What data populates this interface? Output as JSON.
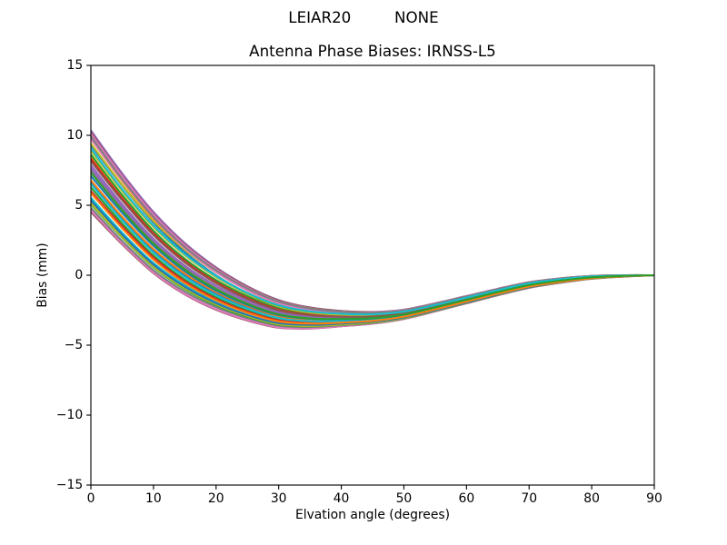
{
  "figure": {
    "suptitle": "LEIAR20         NONE",
    "title": "Antenna Phase Biases: IRNSS-L5",
    "xlabel": "Elvation angle (degrees)",
    "ylabel": "Bias (mm)",
    "background": "#ffffff",
    "text_color": "#000000",
    "axis_color": "#000000"
  },
  "chart_data": {
    "type": "line",
    "suptitle": "LEIAR20         NONE",
    "title": "Antenna Phase Biases: IRNSS-L5",
    "xlabel": "Elvation angle (degrees)",
    "ylabel": "Bias (mm)",
    "xlim": [
      0,
      90
    ],
    "ylim": [
      -15,
      15
    ],
    "xtick_values": [
      0,
      10,
      20,
      30,
      40,
      50,
      60,
      70,
      80,
      90
    ],
    "xtick_labels": [
      "0",
      "10",
      "20",
      "30",
      "40",
      "50",
      "60",
      "70",
      "80",
      "90"
    ],
    "ytick_values": [
      15,
      10,
      5,
      0,
      -5,
      -10,
      -15
    ],
    "ytick_labels": [
      "15",
      "10",
      "5",
      "0",
      "−5",
      "−10",
      "−15"
    ],
    "grid": false,
    "legend": "none",
    "line_width": 2.08,
    "palette": [
      "#1f77b4",
      "#ff7f0e",
      "#2ca02c",
      "#d62728",
      "#9467bd",
      "#8c564b",
      "#e377c2",
      "#7f7f7f",
      "#bcbd22",
      "#17becf"
    ],
    "x": [
      0,
      5,
      10,
      15,
      20,
      25,
      30,
      35,
      40,
      45,
      50,
      55,
      60,
      65,
      70,
      75,
      80,
      85,
      90
    ],
    "series": [
      {
        "color": "#1f77b4",
        "values": [
          6.716,
          4.105,
          1.789,
          0.024,
          -1.298,
          -2.279,
          -2.976,
          -3.225,
          -3.231,
          -3.153,
          -2.883,
          -2.373,
          -1.815,
          -1.257,
          -0.748,
          -0.416,
          -0.172,
          -0.061,
          0.0
        ]
      },
      {
        "color": "#ff7f0e",
        "values": [
          8.487,
          5.622,
          3.082,
          1.106,
          -0.401,
          -1.547,
          -2.375,
          -2.759,
          -2.887,
          -2.889,
          -2.674,
          -2.193,
          -1.655,
          -1.116,
          -0.626,
          -0.321,
          -0.112,
          -0.031,
          0.0
        ]
      },
      {
        "color": "#2ca02c",
        "values": [
          8.632,
          5.741,
          3.178,
          1.181,
          -0.343,
          -1.5,
          -2.333,
          -2.722,
          -2.854,
          -2.859,
          -2.649,
          -2.17,
          -1.635,
          -1.101,
          -0.615,
          -0.315,
          -0.109,
          -0.03,
          0.0
        ]
      },
      {
        "color": "#d62728",
        "values": [
          8.317,
          5.493,
          2.977,
          1.013,
          -0.489,
          -1.629,
          -2.449,
          -2.819,
          -2.93,
          -2.92,
          -2.697,
          -2.21,
          -1.669,
          -1.128,
          -0.637,
          -0.33,
          -0.118,
          -0.035,
          0.0
        ]
      },
      {
        "color": "#9467bd",
        "values": [
          10.356,
          7.283,
          4.522,
          2.302,
          0.563,
          -0.789,
          -1.774,
          -2.301,
          -2.548,
          -2.625,
          -2.46,
          -2.003,
          -1.484,
          -0.965,
          -0.497,
          -0.221,
          -0.049,
          -0.001,
          0.0
        ]
      },
      {
        "color": "#8c564b",
        "values": [
          10.2,
          7.115,
          4.378,
          2.2,
          0.499,
          -0.828,
          -1.799,
          -2.318,
          -2.562,
          -2.638,
          -2.475,
          -2.021,
          -1.502,
          -0.98,
          -0.506,
          -0.226,
          -0.051,
          -0.002,
          0.0
        ]
      },
      {
        "color": "#e377c2",
        "values": [
          10.099,
          7.061,
          4.332,
          2.141,
          0.429,
          -0.896,
          -1.857,
          -2.362,
          -2.592,
          -2.659,
          -2.489,
          -2.03,
          -1.509,
          -0.986,
          -0.514,
          -0.234,
          -0.057,
          -0.005,
          0.0
        ]
      },
      {
        "color": "#7f7f7f",
        "values": [
          7.489,
          4.795,
          2.38,
          0.502,
          -0.924,
          -1.989,
          -2.742,
          -3.038,
          -3.085,
          -3.035,
          -2.787,
          -2.291,
          -1.744,
          -1.197,
          -0.698,
          -0.378,
          -0.148,
          -0.048,
          0.0
        ]
      },
      {
        "color": "#bcbd22",
        "values": [
          8.913,
          6.01,
          3.437,
          1.422,
          -0.136,
          -1.344,
          -2.23,
          -2.665,
          -2.826,
          -2.84,
          -2.629,
          -2.146,
          -1.607,
          -1.072,
          -0.591,
          -0.297,
          -0.098,
          -0.025,
          0.0
        ]
      },
      {
        "color": "#17becf",
        "values": [
          5.546,
          3.049,
          0.884,
          -0.703,
          -1.859,
          -2.706,
          -3.313,
          -3.487,
          -3.433,
          -3.316,
          -3.017,
          -2.49,
          -1.917,
          -1.342,
          -0.819,
          -0.471,
          -0.208,
          -0.079,
          0.0
        ]
      },
      {
        "color": "#1f77b4",
        "values": [
          9.305,
          6.413,
          3.773,
          1.642,
          -0.015,
          -1.271,
          -2.158,
          -2.581,
          -2.742,
          -2.769,
          -2.577,
          -2.11,
          -1.584,
          -1.055,
          -0.574,
          -0.281,
          -0.087,
          -0.019,
          0.0
        ]
      },
      {
        "color": "#ff7f0e",
        "values": [
          6.792,
          4.183,
          1.877,
          0.119,
          -1.209,
          -2.206,
          -2.921,
          -3.189,
          -3.208,
          -3.136,
          -2.869,
          -2.358,
          -1.8,
          -1.242,
          -0.735,
          -0.408,
          -0.168,
          -0.059,
          0.0
        ]
      },
      {
        "color": "#2ca02c",
        "values": [
          6.281,
          3.696,
          1.407,
          -0.315,
          -1.582,
          -2.504,
          -3.15,
          -3.351,
          -3.32,
          -3.22,
          -2.937,
          -2.421,
          -1.858,
          -1.295,
          -0.781,
          -0.442,
          -0.189,
          -0.069,
          0.0
        ]
      },
      {
        "color": "#d62728",
        "values": [
          6.021,
          3.509,
          1.269,
          -0.43,
          -1.689,
          -2.598,
          -3.224,
          -3.399,
          -3.346,
          -3.236,
          -2.95,
          -2.437,
          -1.878,
          -1.316,
          -0.801,
          -0.457,
          -0.198,
          -0.073,
          0.0
        ]
      },
      {
        "color": "#9467bd",
        "values": [
          7.662,
          4.921,
          2.512,
          0.654,
          -0.773,
          -1.867,
          -2.656,
          -2.985,
          -3.05,
          -3.005,
          -2.76,
          -2.265,
          -1.721,
          -1.178,
          -0.683,
          -0.365,
          -0.139,
          -0.044,
          0.0
        ]
      },
      {
        "color": "#8c564b",
        "values": [
          4.522,
          2.21,
          0.152,
          -1.369,
          -2.47,
          -3.238,
          -3.751,
          -3.809,
          -3.648,
          -3.465,
          -3.129,
          -2.588,
          -2.011,
          -1.433,
          -0.904,
          -0.541,
          -0.252,
          -0.1,
          0.0
        ]
      },
      {
        "color": "#e377c2",
        "values": [
          4.627,
          2.279,
          0.199,
          -1.329,
          -2.429,
          -3.201,
          -3.725,
          -3.795,
          -3.642,
          -3.461,
          -3.124,
          -2.58,
          -2.0,
          -1.422,
          -0.895,
          -0.534,
          -0.248,
          -0.098,
          0.0
        ]
      },
      {
        "color": "#7f7f7f",
        "values": [
          4.82,
          2.442,
          0.352,
          -1.179,
          -2.283,
          -3.066,
          -3.607,
          -3.704,
          -3.58,
          -3.42,
          -3.097,
          -2.56,
          -1.984,
          -1.408,
          -0.88,
          -0.52,
          -0.238,
          -0.093,
          0.0
        ]
      },
      {
        "color": "#bcbd22",
        "values": [
          9.424,
          6.474,
          3.878,
          1.825,
          0.205,
          -1.081,
          -2.035,
          -2.526,
          -2.724,
          -2.758,
          -2.558,
          -2.082,
          -1.551,
          -1.026,
          -0.553,
          -0.267,
          -0.078,
          -0.015,
          0.0
        ]
      },
      {
        "color": "#17becf",
        "values": [
          6.525,
          3.925,
          1.616,
          -0.138,
          -1.442,
          -2.397,
          -3.066,
          -3.285,
          -3.267,
          -3.174,
          -2.898,
          -2.386,
          -1.829,
          -1.273,
          -0.766,
          -0.433,
          -0.184,
          -0.066,
          0.0
        ]
      },
      {
        "color": "#1f77b4",
        "values": [
          7.086,
          4.451,
          2.1,
          0.279,
          -1.103,
          -2.129,
          -2.85,
          -3.118,
          -3.146,
          -3.087,
          -2.833,
          -2.331,
          -1.777,
          -1.223,
          -0.719,
          -0.395,
          -0.161,
          -0.055,
          0.0
        ]
      },
      {
        "color": "#ff7f0e",
        "values": [
          9.741,
          6.741,
          4.059,
          1.925,
          0.264,
          -1.023,
          -1.961,
          -2.447,
          -2.66,
          -2.714,
          -2.533,
          -2.067,
          -1.539,
          -1.012,
          -0.536,
          -0.251,
          -0.069,
          -0.011,
          0.0
        ]
      },
      {
        "color": "#2ca02c",
        "values": [
          5.08,
          2.689,
          0.571,
          -1.001,
          -2.148,
          -2.97,
          -3.537,
          -3.654,
          -3.542,
          -3.388,
          -3.068,
          -2.533,
          -1.96,
          -1.386,
          -0.862,
          -0.507,
          -0.231,
          -0.089,
          0.0
        ]
      },
      {
        "color": "#d62728",
        "values": [
          5.269,
          2.856,
          0.718,
          -0.879,
          -2.05,
          -2.888,
          -3.463,
          -3.589,
          -3.491,
          -3.35,
          -3.04,
          -2.51,
          -1.939,
          -1.368,
          -0.847,
          -0.497,
          -0.225,
          -0.086,
          0.0
        ]
      },
      {
        "color": "#9467bd",
        "values": [
          7.88,
          5.089,
          2.611,
          0.699,
          -0.745,
          -1.826,
          -2.598,
          -2.924,
          -3.003,
          -2.975,
          -2.742,
          -2.252,
          -1.71,
          -1.166,
          -0.671,
          -0.357,
          -0.135,
          -0.042,
          0.0
        ]
      },
      {
        "color": "#8c564b",
        "values": [
          8.155,
          5.359,
          2.861,
          0.913,
          -0.573,
          -1.697,
          -2.505,
          -2.863,
          -2.964,
          -2.946,
          -2.718,
          -2.227,
          -1.683,
          -1.139,
          -0.647,
          -0.339,
          -0.125,
          -0.038,
          0.0
        ]
      },
      {
        "color": "#e377c2",
        "values": [
          9.754,
          6.806,
          4.116,
          1.932,
          0.226,
          -1.074,
          -1.996,
          -2.458,
          -2.654,
          -2.706,
          -2.53,
          -2.07,
          -1.546,
          -1.017,
          -0.537,
          -0.25,
          -0.068,
          -0.011,
          0.0
        ]
      },
      {
        "color": "#7f7f7f",
        "values": [
          9.926,
          6.879,
          4.167,
          2.016,
          0.348,
          -0.942,
          -1.885,
          -2.384,
          -2.612,
          -2.678,
          -2.507,
          -2.047,
          -1.523,
          -0.999,
          -0.524,
          -0.242,
          -0.062,
          -0.007,
          0.0
        ]
      },
      {
        "color": "#bcbd22",
        "values": [
          5.154,
          2.744,
          0.628,
          -0.936,
          -2.083,
          -2.914,
          -3.496,
          -3.627,
          -3.525,
          -3.374,
          -3.056,
          -2.52,
          -1.947,
          -1.375,
          -0.854,
          -0.502,
          -0.228,
          -0.088,
          0.0
        ]
      },
      {
        "color": "#17becf",
        "values": [
          9.064,
          6.14,
          3.547,
          1.51,
          -0.061,
          -1.269,
          -2.147,
          -2.583,
          -2.758,
          -2.791,
          -2.6,
          -2.131,
          -1.602,
          -1.071,
          -0.586,
          -0.287,
          -0.089,
          -0.019,
          0.0
        ]
      },
      {
        "color": "#1f77b4",
        "values": [
          5.353,
          2.898,
          0.757,
          -0.83,
          -1.999,
          -2.845,
          -3.427,
          -3.556,
          -3.459,
          -3.32,
          -3.017,
          -2.496,
          -1.934,
          -1.367,
          -0.846,
          -0.492,
          -0.22,
          -0.084,
          0.0
        ]
      },
      {
        "color": "#ff7f0e",
        "values": [
          5.877,
          3.352,
          1.117,
          -0.561,
          -1.797,
          -2.687,
          -3.3,
          -3.459,
          -3.387,
          -3.261,
          -2.965,
          -2.444,
          -1.884,
          -1.324,
          -0.812,
          -0.47,
          -0.207,
          -0.077,
          0.0
        ]
      },
      {
        "color": "#2ca02c",
        "values": [
          7.326,
          4.647,
          2.255,
          0.404,
          -0.999,
          -2.049,
          -2.796,
          -3.087,
          -3.126,
          -3.066,
          -2.81,
          -2.306,
          -1.755,
          -1.205,
          -0.706,
          -0.386,
          -0.155,
          -0.052,
          0.0
        ]
      }
    ]
  }
}
